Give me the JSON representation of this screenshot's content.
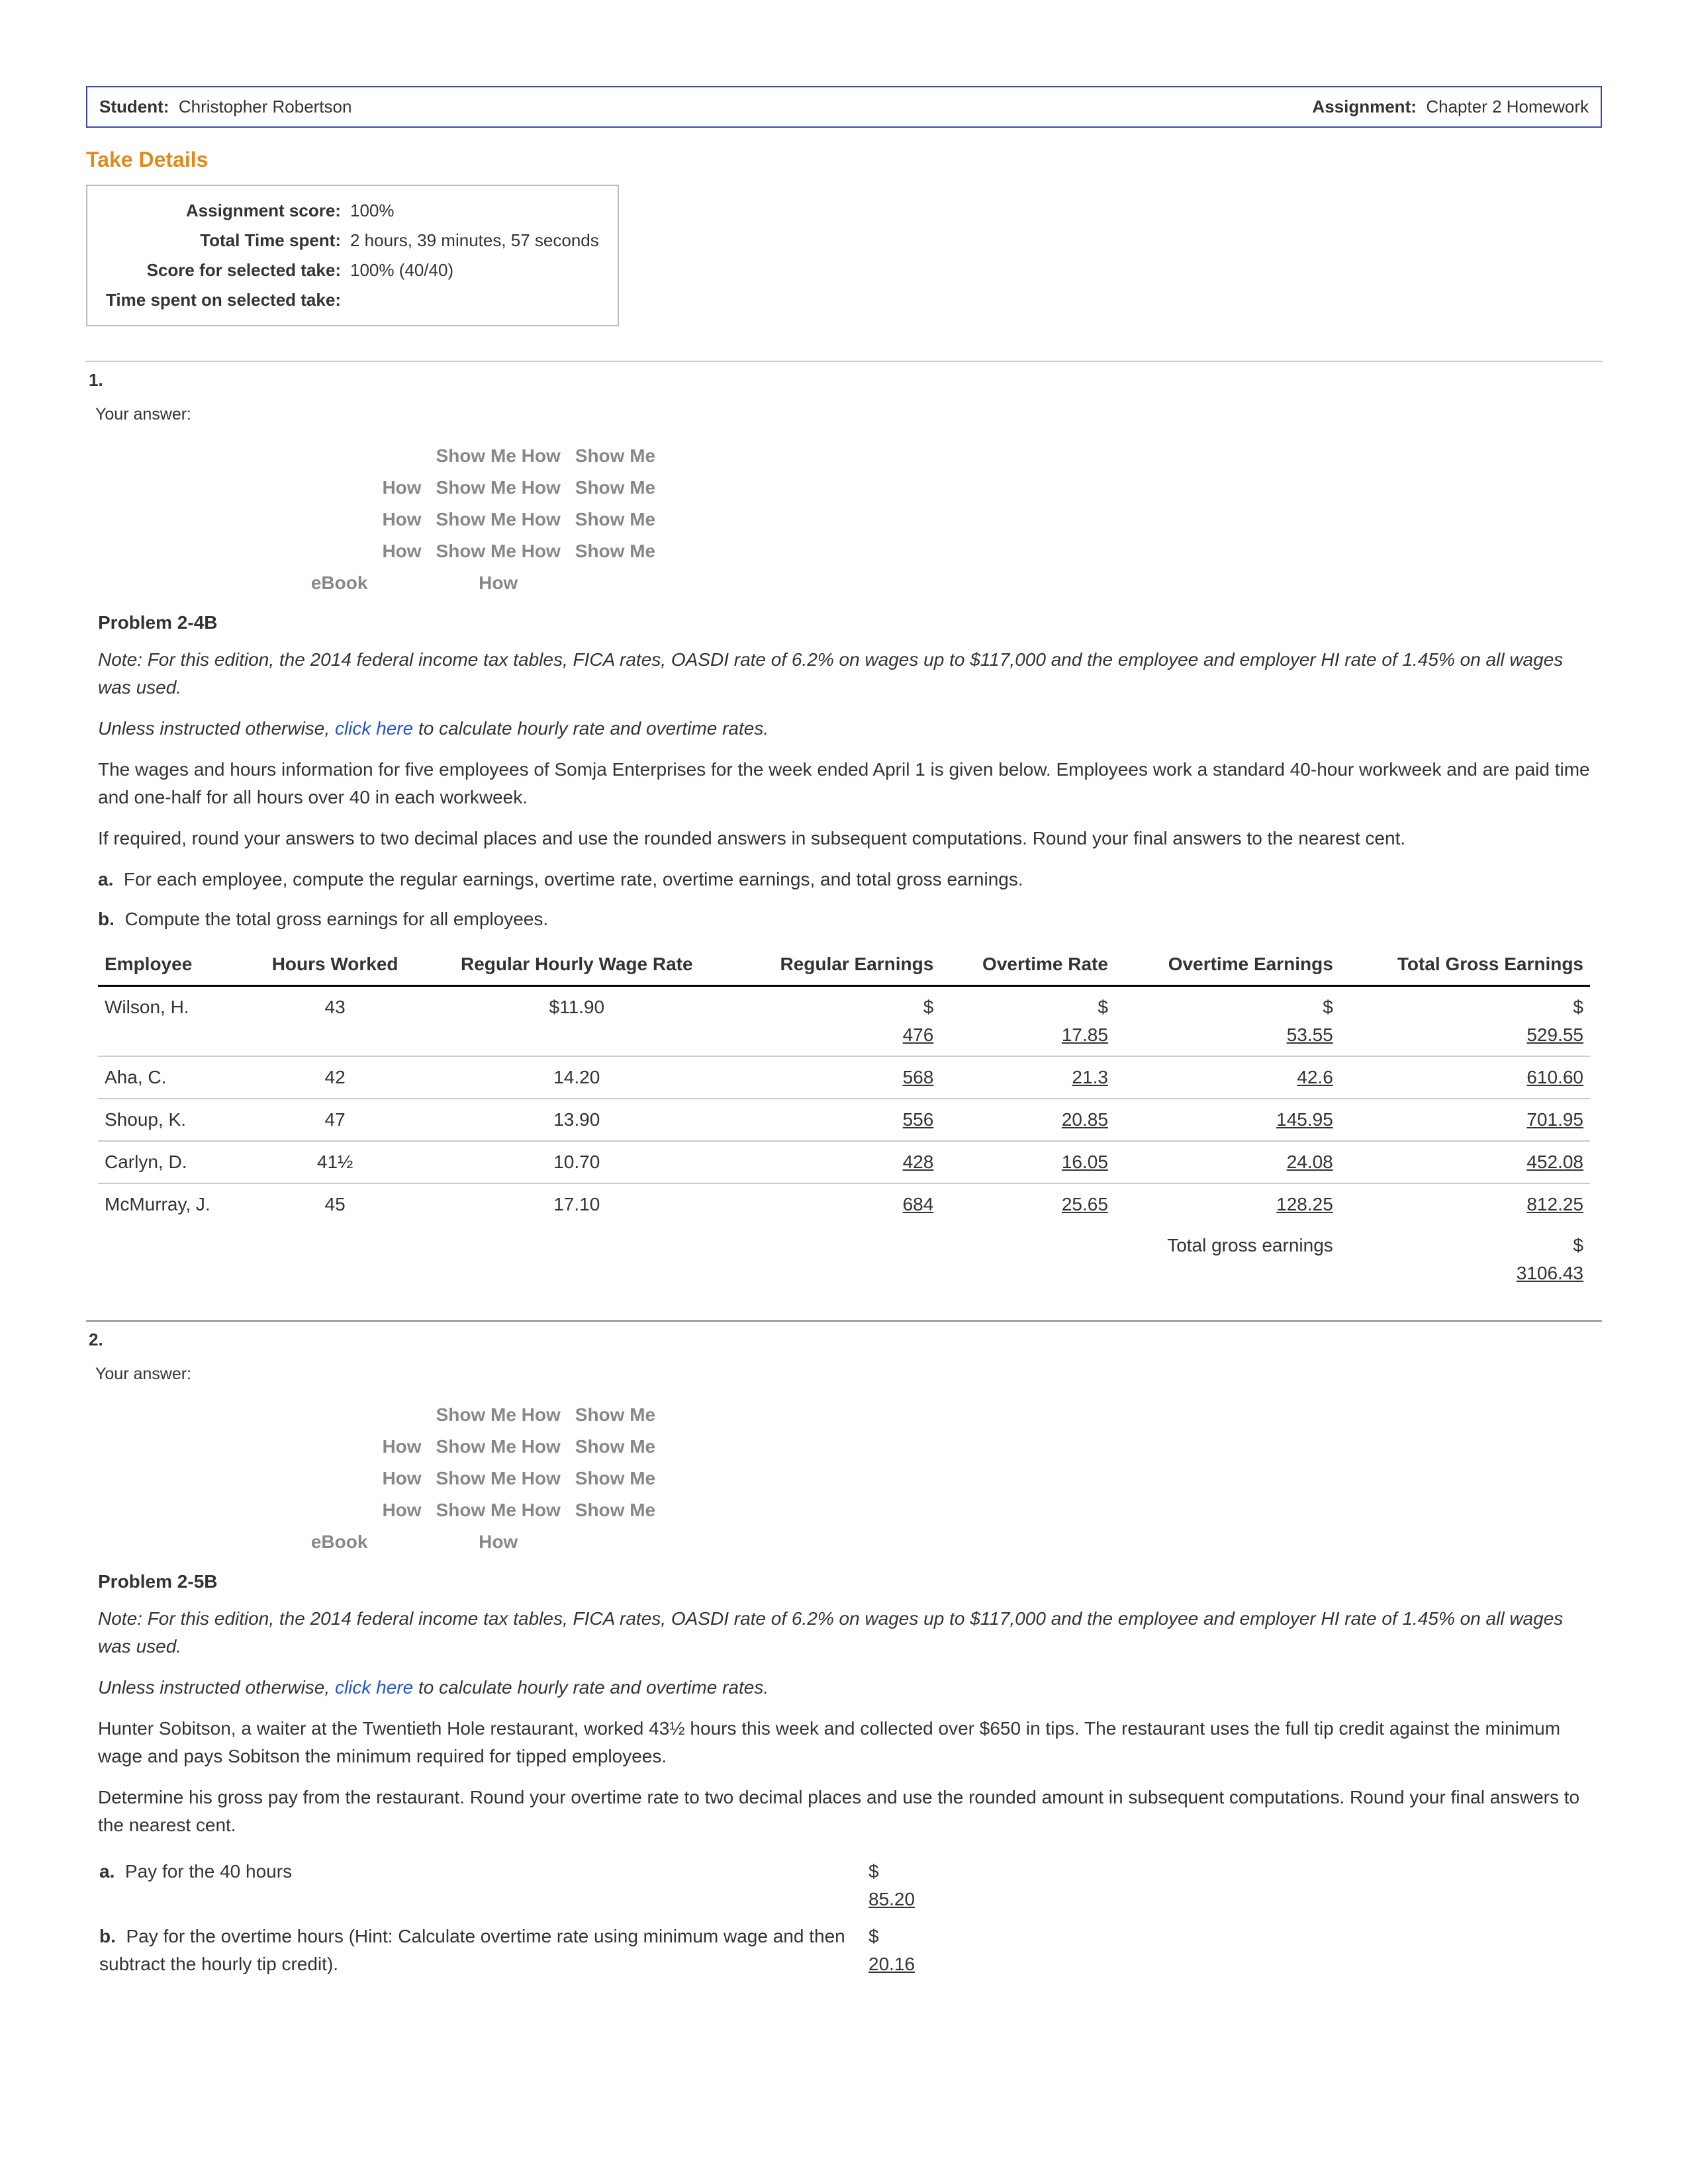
{
  "header": {
    "student_label": "Student:",
    "student_name": "Christopher Robertson",
    "assignment_label": "Assignment:",
    "assignment_name": "Chapter 2 Homework"
  },
  "take_details": {
    "title": "Take Details",
    "rows": [
      [
        "Assignment score:",
        "100%"
      ],
      [
        "Total Time spent:",
        "2 hours, 39 minutes, 57 seconds"
      ],
      [
        "Score for selected take:",
        "100% (40/40)"
      ],
      [
        "Time spent on selected take:",
        ""
      ]
    ]
  },
  "toolbar": {
    "ebook": "eBook",
    "how": "How",
    "smh": "Show Me How",
    "sm": "Show Me"
  },
  "q1": {
    "num": "1.",
    "your_answer": "Your answer:",
    "title": "Problem 2-4B",
    "note": "Note: For this edition, the 2014 federal income tax tables, FICA rates, OASDI rate of 6.2% on wages up to $117,000 and the employee and employer HI rate of 1.45% on all wages was used.",
    "instr_pre": "Unless instructed otherwise, ",
    "instr_link": "click here",
    "instr_post": " to calculate hourly rate and overtime rates.",
    "p1": "The wages and hours information for five employees of Somja Enterprises for the week ended April 1 is given below. Employees work a standard 40-hour workweek and are paid time and one-half for all hours over 40 in each workweek.",
    "p2": "If required, round your answers to two decimal places and use the rounded answers in subsequent computations. Round your final answers to the nearest cent.",
    "a": "For each employee, compute the regular earnings, overtime rate, overtime earnings, and total gross earnings.",
    "b": "Compute the total gross earnings for all employees.",
    "cols": [
      "Employee",
      "Hours Worked",
      "Regular Hourly Wage Rate",
      "Regular Earnings",
      "Overtime Rate",
      "Overtime Earnings",
      "Total Gross Earnings"
    ],
    "rows": [
      {
        "emp": "Wilson, H.",
        "hours": "43",
        "rate": "$11.90",
        "re": "476",
        "or": "17.85",
        "oe": "53.55",
        "ge": "529.55",
        "first": true
      },
      {
        "emp": "Aha, C.",
        "hours": "42",
        "rate": "14.20",
        "re": "568",
        "or": "21.3",
        "oe": "42.6",
        "ge": "610.60"
      },
      {
        "emp": "Shoup, K.",
        "hours": "47",
        "rate": "13.90",
        "re": "556",
        "or": "20.85",
        "oe": "145.95",
        "ge": "701.95"
      },
      {
        "emp": "Carlyn, D.",
        "hours": "41½",
        "rate": "10.70",
        "re": "428",
        "or": "16.05",
        "oe": "24.08",
        "ge": "452.08"
      },
      {
        "emp": "McMurray, J.",
        "hours": "45",
        "rate": "17.10",
        "re": "684",
        "or": "25.65",
        "oe": "128.25",
        "ge": "812.25"
      }
    ],
    "total_label": "Total gross earnings",
    "total_value": "3106.43"
  },
  "q2": {
    "num": "2.",
    "your_answer": "Your answer:",
    "title": "Problem 2-5B",
    "note": "Note: For this edition, the 2014 federal income tax tables, FICA rates, OASDI rate of 6.2% on wages up to $117,000 and the employee and employer HI rate of 1.45% on all wages was used.",
    "instr_pre": "Unless instructed otherwise, ",
    "instr_link": "click here",
    "instr_post": " to calculate hourly rate and overtime rates.",
    "p1": "Hunter Sobitson, a waiter at the Twentieth Hole restaurant, worked 43½ hours this week and collected over $650 in tips. The restaurant uses the full tip credit against the minimum wage and pays Sobitson the minimum required for tipped employees.",
    "p2": "Determine his gross pay from the restaurant. Round your overtime rate to two decimal places and use the rounded amount in subsequent computations. Round your final answers to the nearest cent.",
    "a_label": "Pay for the 40 hours",
    "a_value": "85.20",
    "b_label": "Pay for the overtime hours (Hint: Calculate overtime rate using minimum wage and then subtract the hourly tip credit).",
    "b_value": "20.16"
  },
  "dollar": "$"
}
